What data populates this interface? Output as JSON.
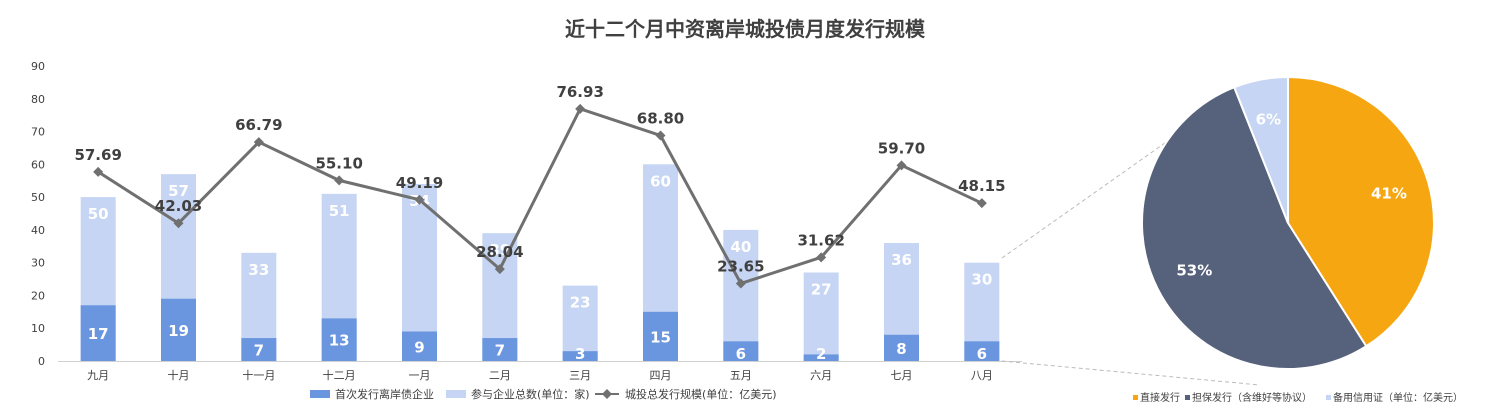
{
  "chart_data": [
    {
      "type": "bar",
      "title": "近十二个月中资离岸城投债月度发行规模",
      "categories": [
        "九月",
        "十月",
        "十一月",
        "十二月",
        "一月",
        "二月",
        "三月",
        "四月",
        "五月",
        "六月",
        "七月",
        "八月"
      ],
      "ylim": [
        0,
        90
      ],
      "yticks": [
        0,
        10,
        20,
        30,
        40,
        50,
        60,
        70,
        80,
        90
      ],
      "series": [
        {
          "name": "首次发行离岸债企业",
          "kind": "bar",
          "color": "#6A95DF",
          "values": [
            17,
            19,
            7,
            13,
            9,
            7,
            3,
            15,
            6,
            2,
            8,
            6
          ]
        },
        {
          "name": "参与企业总数(单位：家)",
          "kind": "bar",
          "color": "#C5D5F3",
          "values": [
            50,
            57,
            33,
            51,
            54,
            39,
            23,
            60,
            40,
            27,
            36,
            30
          ]
        },
        {
          "name": "城投总发行规模(单位：亿美元)",
          "kind": "line",
          "color": "#707070",
          "values": [
            57.69,
            42.03,
            66.79,
            55.1,
            49.19,
            28.04,
            76.93,
            68.8,
            23.65,
            31.62,
            59.7,
            48.15
          ],
          "labels": [
            "57.69",
            "42.03",
            "66.79",
            "55.10",
            "49.19",
            "28.04",
            "76.93",
            "68.80",
            "23.65",
            "31.62",
            "59.70",
            "48.15"
          ]
        }
      ],
      "grid": false,
      "legend": "bottom"
    },
    {
      "type": "pie",
      "slices": [
        {
          "name": "直接发行",
          "value": 41,
          "label": "41%",
          "color": "#F6A610"
        },
        {
          "name": "担保发行（含维好等协议）",
          "value": 53,
          "label": "53%",
          "color": "#56617B"
        },
        {
          "name": "备用信用证（单位：亿美元）",
          "value": 6,
          "label": "6%",
          "color": "#C5D5F3"
        }
      ],
      "legend": "bottom"
    }
  ]
}
